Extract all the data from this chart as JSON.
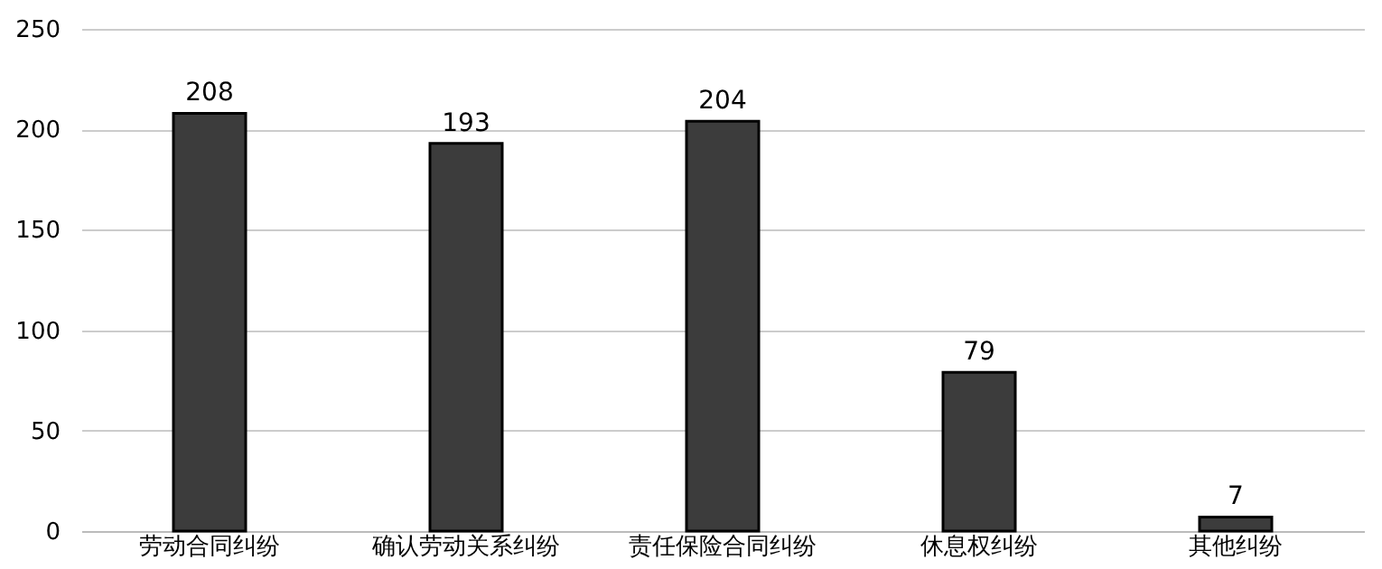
{
  "chart_data": {
    "type": "bar",
    "categories": [
      "劳动合同纠纷",
      "确认劳动关系纠纷",
      "责任保险合同纠纷",
      "休息权纠纷",
      "其他纠纷"
    ],
    "values": [
      208,
      193,
      204,
      79,
      7
    ],
    "color": "#3c3c3c",
    "ylim": [
      0,
      250
    ],
    "yticks": [
      0,
      50,
      100,
      150,
      200,
      250
    ],
    "grid": "y",
    "data_labels": true
  }
}
